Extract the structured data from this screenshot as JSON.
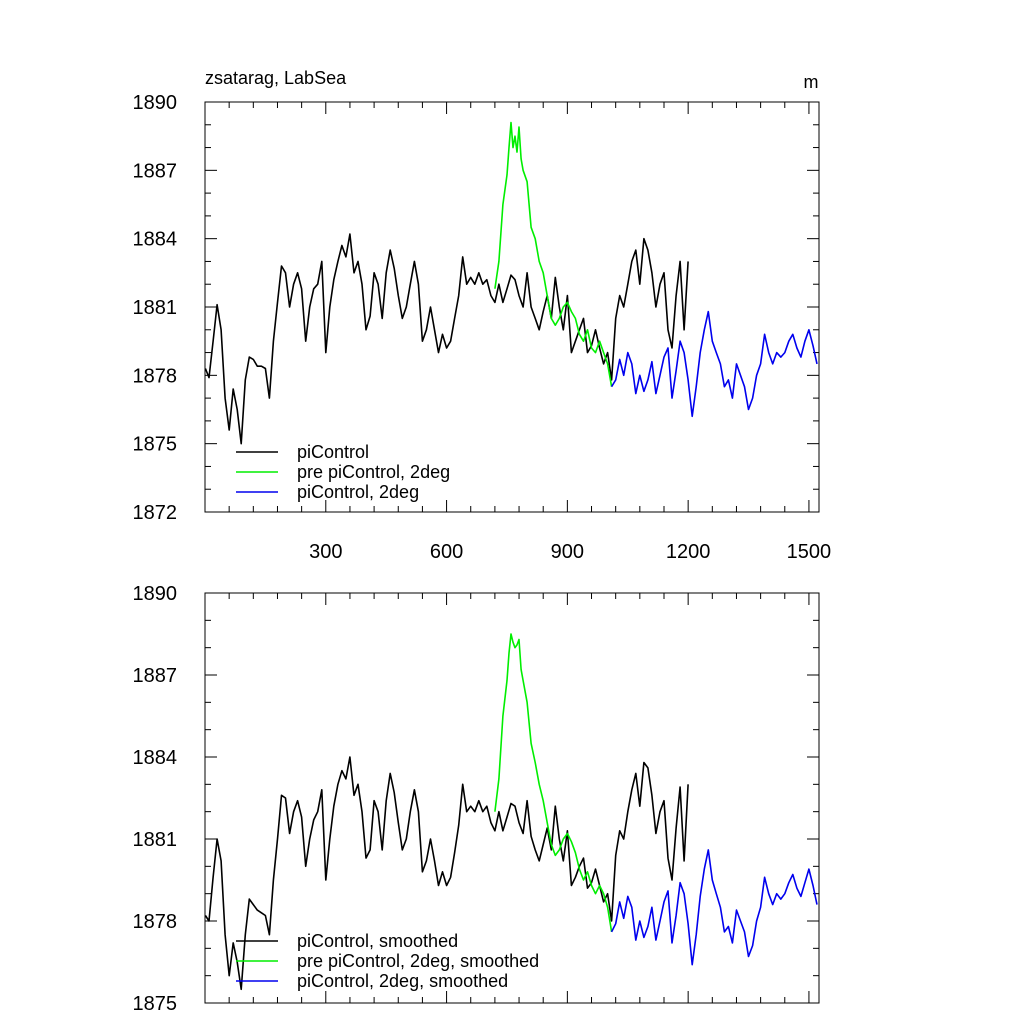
{
  "chart_data": [
    {
      "type": "line",
      "title": "zsatarag, LabSea",
      "units": "m",
      "xlim": [
        0,
        1525
      ],
      "ylim": [
        1872,
        1890
      ],
      "xticks": [
        300,
        600,
        900,
        1200,
        1500
      ],
      "yticks": [
        1872,
        1875,
        1878,
        1881,
        1884,
        1887,
        1890
      ],
      "series": [
        {
          "name": "piControl",
          "color": "#000000",
          "x": [
            1,
            10,
            20,
            30,
            40,
            50,
            60,
            70,
            80,
            90,
            100,
            110,
            120,
            130,
            140,
            150,
            160,
            170,
            180,
            190,
            200,
            210,
            220,
            230,
            240,
            250,
            260,
            270,
            280,
            290,
            300,
            310,
            320,
            330,
            340,
            350,
            360,
            370,
            380,
            390,
            400,
            410,
            420,
            430,
            440,
            450,
            460,
            470,
            480,
            490,
            500,
            510,
            520,
            530,
            540,
            550,
            560,
            570,
            580,
            590,
            600,
            610,
            620,
            630,
            640,
            650,
            660,
            670,
            680,
            690,
            700,
            710,
            720,
            730,
            740,
            750,
            760,
            770,
            780,
            790,
            800,
            810,
            820,
            830,
            840,
            850,
            860,
            870,
            880,
            890,
            900,
            910,
            920,
            930,
            940,
            950,
            960,
            970,
            980,
            990,
            1000,
            1010,
            1020,
            1030,
            1040,
            1050,
            1060,
            1070,
            1080,
            1090,
            1100,
            1110,
            1120,
            1130,
            1140,
            1150,
            1160,
            1170,
            1180,
            1190,
            1200
          ],
          "values": [
            1878.3,
            1877.9,
            1879.5,
            1881.1,
            1880.0,
            1877.0,
            1875.6,
            1877.4,
            1876.5,
            1875.0,
            1877.8,
            1878.8,
            1878.7,
            1878.4,
            1878.4,
            1878.3,
            1877.0,
            1879.5,
            1881.2,
            1882.8,
            1882.5,
            1881.0,
            1882.0,
            1882.5,
            1881.8,
            1879.5,
            1881.0,
            1881.8,
            1882.0,
            1883.0,
            1879.0,
            1881.0,
            1882.2,
            1883.0,
            1883.7,
            1883.2,
            1884.2,
            1882.5,
            1883.0,
            1882.0,
            1880.0,
            1880.6,
            1882.5,
            1882.0,
            1880.5,
            1882.5,
            1883.5,
            1882.7,
            1881.5,
            1880.5,
            1881.0,
            1882.0,
            1883.0,
            1882.0,
            1879.5,
            1880.0,
            1881.0,
            1880.0,
            1879.0,
            1879.8,
            1879.2,
            1879.5,
            1880.5,
            1881.5,
            1883.2,
            1882.0,
            1882.3,
            1882.0,
            1882.5,
            1882.0,
            1882.2,
            1881.5,
            1881.2,
            1882.0,
            1881.2,
            1881.8,
            1882.4,
            1882.2,
            1881.5,
            1881.0,
            1882.5,
            1881.0,
            1880.5,
            1880.0,
            1880.8,
            1881.5,
            1880.5,
            1882.3,
            1881.0,
            1880.0,
            1881.5,
            1879.0,
            1879.5,
            1880.0,
            1880.5,
            1879.0,
            1879.3,
            1880.0,
            1879.2,
            1878.5,
            1879.0,
            1877.8,
            1880.5,
            1881.5,
            1881.0,
            1882.0,
            1883.0,
            1883.5,
            1882.0,
            1884.0,
            1883.5,
            1882.5,
            1881.0,
            1882.0,
            1882.5,
            1880.0,
            1879.2,
            1881.5,
            1883.0,
            1880.0,
            1883.0
          ]
        },
        {
          "name": "pre piControl, 2deg",
          "color": "#00ee00",
          "x": [
            720,
            730,
            740,
            750,
            755,
            760,
            765,
            770,
            775,
            780,
            785,
            790,
            800,
            810,
            820,
            830,
            840,
            850,
            860,
            870,
            880,
            890,
            900,
            910,
            920,
            930,
            940,
            950,
            960,
            970,
            980,
            990,
            1000,
            1010
          ],
          "values": [
            1881.8,
            1883.0,
            1885.5,
            1886.8,
            1888.0,
            1889.1,
            1888.0,
            1888.5,
            1887.8,
            1888.9,
            1887.5,
            1887.0,
            1886.5,
            1884.5,
            1884.0,
            1883.0,
            1882.5,
            1881.5,
            1880.5,
            1880.2,
            1880.5,
            1881.0,
            1881.2,
            1880.8,
            1880.5,
            1879.8,
            1879.5,
            1880.0,
            1879.2,
            1879.0,
            1879.5,
            1879.0,
            1878.5,
            1877.5
          ]
        },
        {
          "name": "piControl, 2deg",
          "color": "#0000ee",
          "x": [
            1010,
            1020,
            1030,
            1040,
            1050,
            1060,
            1070,
            1080,
            1090,
            1100,
            1110,
            1120,
            1130,
            1140,
            1150,
            1160,
            1170,
            1180,
            1190,
            1200,
            1210,
            1220,
            1230,
            1240,
            1250,
            1260,
            1270,
            1280,
            1290,
            1300,
            1310,
            1320,
            1330,
            1340,
            1350,
            1360,
            1370,
            1380,
            1390,
            1400,
            1410,
            1420,
            1430,
            1440,
            1450,
            1460,
            1470,
            1480,
            1490,
            1500,
            1510,
            1520
          ],
          "values": [
            1877.5,
            1877.8,
            1878.7,
            1878.0,
            1879.0,
            1878.5,
            1877.2,
            1878.0,
            1877.3,
            1877.8,
            1878.6,
            1877.2,
            1878.0,
            1878.8,
            1879.2,
            1877.0,
            1878.2,
            1879.5,
            1879.0,
            1877.8,
            1876.2,
            1877.5,
            1879.0,
            1880.0,
            1880.8,
            1879.5,
            1879.0,
            1878.5,
            1877.5,
            1877.8,
            1877.0,
            1878.5,
            1878.0,
            1877.5,
            1876.5,
            1877.0,
            1878.0,
            1878.5,
            1879.8,
            1879.0,
            1878.5,
            1879.0,
            1878.8,
            1879.0,
            1879.5,
            1879.8,
            1879.2,
            1878.8,
            1879.5,
            1880.0,
            1879.3,
            1878.5
          ]
        }
      ],
      "legend": [
        "piControl",
        "pre piControl, 2deg",
        "piControl, 2deg"
      ]
    },
    {
      "type": "line",
      "title": "",
      "units": "",
      "xlim": [
        0,
        1525
      ],
      "ylim": [
        1875,
        1890
      ],
      "xticks": [
        300,
        600,
        900,
        1200,
        1500
      ],
      "yticks": [
        1875,
        1878,
        1881,
        1884,
        1887,
        1890
      ],
      "series": [
        {
          "name": "piControl, smoothed",
          "color": "#000000",
          "x": [
            1,
            10,
            20,
            30,
            40,
            50,
            60,
            70,
            80,
            90,
            100,
            110,
            120,
            130,
            140,
            150,
            160,
            170,
            180,
            190,
            200,
            210,
            220,
            230,
            240,
            250,
            260,
            270,
            280,
            290,
            300,
            310,
            320,
            330,
            340,
            350,
            360,
            370,
            380,
            390,
            400,
            410,
            420,
            430,
            440,
            450,
            460,
            470,
            480,
            490,
            500,
            510,
            520,
            530,
            540,
            550,
            560,
            570,
            580,
            590,
            600,
            610,
            620,
            630,
            640,
            650,
            660,
            670,
            680,
            690,
            700,
            710,
            720,
            730,
            740,
            750,
            760,
            770,
            780,
            790,
            800,
            810,
            820,
            830,
            840,
            850,
            860,
            870,
            880,
            890,
            900,
            910,
            920,
            930,
            940,
            950,
            960,
            970,
            980,
            990,
            1000,
            1010,
            1020,
            1030,
            1040,
            1050,
            1060,
            1070,
            1080,
            1090,
            1100,
            1110,
            1120,
            1130,
            1140,
            1150,
            1160,
            1170,
            1180,
            1190,
            1200
          ],
          "values": [
            1878.2,
            1878.0,
            1879.6,
            1881.0,
            1880.2,
            1877.5,
            1876.0,
            1877.2,
            1876.5,
            1875.5,
            1877.5,
            1878.8,
            1878.6,
            1878.4,
            1878.3,
            1878.2,
            1877.5,
            1879.5,
            1881.0,
            1882.6,
            1882.5,
            1881.2,
            1882.0,
            1882.4,
            1881.8,
            1880.0,
            1881.0,
            1881.7,
            1882.0,
            1882.8,
            1879.5,
            1881.0,
            1882.2,
            1883.0,
            1883.5,
            1883.2,
            1884.0,
            1882.6,
            1883.0,
            1882.0,
            1880.3,
            1880.6,
            1882.4,
            1882.0,
            1880.6,
            1882.4,
            1883.4,
            1882.7,
            1881.6,
            1880.6,
            1881.0,
            1882.0,
            1882.8,
            1882.0,
            1879.8,
            1880.2,
            1881.0,
            1880.2,
            1879.3,
            1879.8,
            1879.3,
            1879.6,
            1880.5,
            1881.5,
            1883.0,
            1882.0,
            1882.2,
            1882.0,
            1882.4,
            1882.0,
            1882.2,
            1881.6,
            1881.3,
            1882.0,
            1881.3,
            1881.8,
            1882.3,
            1882.2,
            1881.6,
            1881.2,
            1882.4,
            1881.1,
            1880.6,
            1880.2,
            1880.8,
            1881.4,
            1880.6,
            1882.2,
            1881.0,
            1880.2,
            1881.3,
            1879.3,
            1879.6,
            1880.0,
            1880.3,
            1879.2,
            1879.4,
            1879.9,
            1879.3,
            1878.7,
            1879.0,
            1878.0,
            1880.4,
            1881.3,
            1881.0,
            1882.0,
            1882.8,
            1883.4,
            1882.2,
            1883.8,
            1883.6,
            1882.6,
            1881.2,
            1882.0,
            1882.4,
            1880.3,
            1879.5,
            1881.4,
            1882.9,
            1880.2,
            1883.0
          ]
        },
        {
          "name": "pre piControl, 2deg, smoothed",
          "color": "#00ee00",
          "x": [
            720,
            730,
            740,
            750,
            755,
            760,
            765,
            770,
            775,
            780,
            785,
            790,
            800,
            810,
            820,
            830,
            840,
            850,
            860,
            870,
            880,
            890,
            900,
            910,
            920,
            930,
            940,
            950,
            960,
            970,
            980,
            990,
            1000,
            1010
          ],
          "values": [
            1882.0,
            1883.2,
            1885.5,
            1886.8,
            1887.8,
            1888.5,
            1888.2,
            1888.0,
            1888.1,
            1888.3,
            1887.2,
            1886.8,
            1886.0,
            1884.5,
            1883.8,
            1883.0,
            1882.4,
            1881.6,
            1880.8,
            1880.4,
            1880.6,
            1881.0,
            1881.2,
            1880.9,
            1880.5,
            1879.9,
            1879.5,
            1879.8,
            1879.3,
            1879.0,
            1879.3,
            1879.0,
            1878.5,
            1877.6
          ]
        },
        {
          "name": "piControl, 2deg, smoothed",
          "color": "#0000ee",
          "x": [
            1010,
            1020,
            1030,
            1040,
            1050,
            1060,
            1070,
            1080,
            1090,
            1100,
            1110,
            1120,
            1130,
            1140,
            1150,
            1160,
            1170,
            1180,
            1190,
            1200,
            1210,
            1220,
            1230,
            1240,
            1250,
            1260,
            1270,
            1280,
            1290,
            1300,
            1310,
            1320,
            1330,
            1340,
            1350,
            1360,
            1370,
            1380,
            1390,
            1400,
            1410,
            1420,
            1430,
            1440,
            1450,
            1460,
            1470,
            1480,
            1490,
            1500,
            1510,
            1520
          ],
          "values": [
            1877.6,
            1877.9,
            1878.7,
            1878.1,
            1878.9,
            1878.5,
            1877.3,
            1878.0,
            1877.4,
            1877.8,
            1878.5,
            1877.3,
            1878.0,
            1878.7,
            1879.1,
            1877.2,
            1878.2,
            1879.4,
            1879.0,
            1877.9,
            1876.4,
            1877.5,
            1878.9,
            1879.9,
            1880.6,
            1879.5,
            1879.0,
            1878.5,
            1877.6,
            1877.8,
            1877.2,
            1878.4,
            1878.0,
            1877.6,
            1876.7,
            1877.1,
            1878.0,
            1878.5,
            1879.6,
            1879.0,
            1878.6,
            1879.0,
            1878.8,
            1879.0,
            1879.4,
            1879.7,
            1879.2,
            1878.9,
            1879.4,
            1879.9,
            1879.3,
            1878.6
          ]
        }
      ],
      "legend": [
        "piControl, smoothed",
        "pre piControl, 2deg, smoothed",
        "piControl, 2deg, smoothed"
      ]
    }
  ]
}
